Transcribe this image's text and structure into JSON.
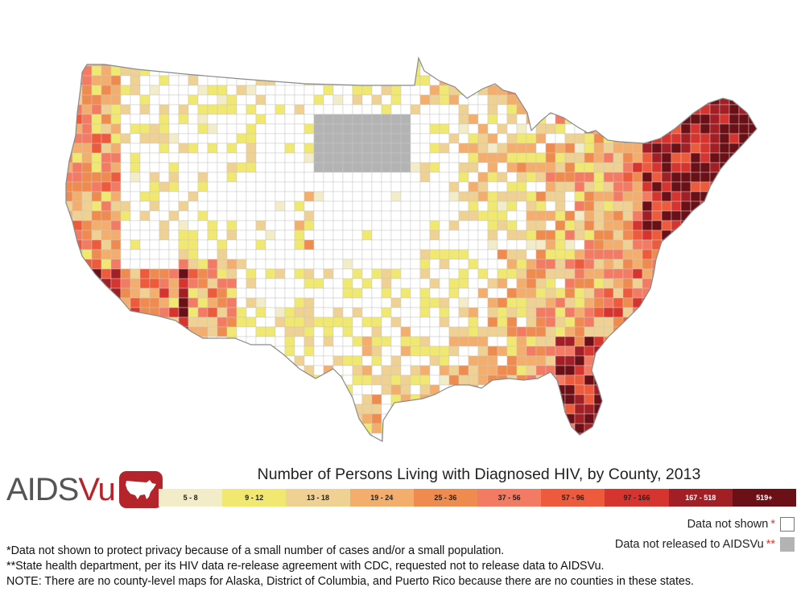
{
  "map": {
    "title": "Number of Persons Living with Diagnosed HIV, by County, 2013",
    "subject": "US contiguous states county choropleth",
    "colors": {
      "no_data": "#ffffff",
      "not_released": "#b3b3b3",
      "border": "#c8c8c8",
      "outline": "#8a8a8a"
    }
  },
  "brand": {
    "name_part1": "AIDS",
    "name_part2": "Vu",
    "badge_icon": "us-map-icon",
    "color": "#b5242a"
  },
  "legend": {
    "bins": [
      {
        "label": "5 - 8",
        "color": "#f2ecc8"
      },
      {
        "label": "9 - 12",
        "color": "#f0e870"
      },
      {
        "label": "13 - 18",
        "color": "#efd193"
      },
      {
        "label": "19 - 24",
        "color": "#f3ae6d"
      },
      {
        "label": "25 - 36",
        "color": "#ef8b4f"
      },
      {
        "label": "37 - 56",
        "color": "#f37a63"
      },
      {
        "label": "57 - 96",
        "color": "#ed5a3c"
      },
      {
        "label": "97 - 166",
        "color": "#d5352e"
      },
      {
        "label": "167 - 518",
        "color": "#a11f25"
      },
      {
        "label": "519+",
        "color": "#6b1016"
      }
    ],
    "not_shown_label": "Data not shown",
    "not_shown_mark": "*",
    "not_released_label": "Data not released to AIDSVu",
    "not_released_mark": "**"
  },
  "notes": [
    "*Data not shown to protect privacy because of a small number of cases and/or a small population.",
    "**State health department, per its HIV data re-release agreement with CDC, requested not to release data to AIDSVu.",
    "NOTE: There are no county-level maps for Alaska, District of Columbia, and Puerto Rico because there are no counties in these states."
  ]
}
